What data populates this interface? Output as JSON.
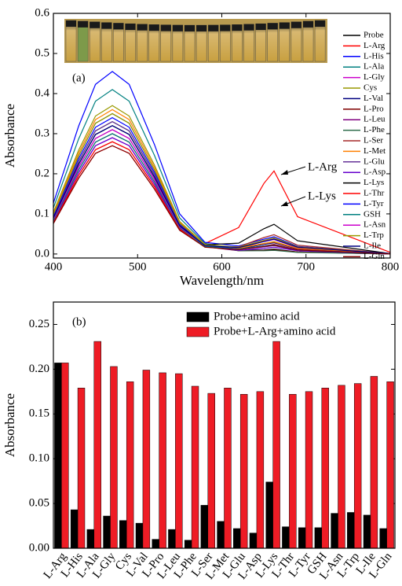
{
  "chart_data": [
    {
      "type": "line",
      "x_label": "Wavelength/nm",
      "y_label": "Absorbance",
      "annotations": [
        "(a)",
        "L-Arg",
        "L-Lys"
      ],
      "xlim": [
        400,
        800
      ],
      "xticks": [
        400,
        500,
        600,
        700,
        800
      ],
      "ylim": [
        -0.01,
        0.6
      ],
      "yticks": [
        {
          "value": 0,
          "label": "0.0"
        },
        0.1,
        0.2,
        0.3,
        0.4,
        0.5,
        0.6
      ],
      "legend": "upper right",
      "x": [
        400,
        430,
        450,
        470,
        490,
        520,
        550,
        580,
        620,
        650,
        662,
        690,
        800
      ],
      "series": [
        {
          "name": "Probe",
          "color": "#000000",
          "values": [
            0.092,
            0.231,
            0.307,
            0.33,
            0.307,
            0.198,
            0.073,
            0.021,
            0.009,
            0.01,
            0.012,
            0.005,
            0.0
          ]
        },
        {
          "name": "L-Arg",
          "color": "#ff0000",
          "values": [
            0.076,
            0.189,
            0.251,
            0.27,
            0.251,
            0.162,
            0.059,
            0.026,
            0.066,
            0.176,
            0.207,
            0.093,
            0.004
          ]
        },
        {
          "name": "L-His",
          "color": "#0000ff",
          "values": [
            0.127,
            0.319,
            0.423,
            0.455,
            0.423,
            0.273,
            0.1,
            0.029,
            0.02,
            0.037,
            0.043,
            0.019,
            0.001
          ]
        },
        {
          "name": "L-Ala",
          "color": "#008080",
          "values": [
            0.115,
            0.287,
            0.381,
            0.41,
            0.381,
            0.246,
            0.09,
            0.026,
            0.012,
            0.018,
            0.021,
            0.009,
            0.0
          ]
        },
        {
          "name": "L-Gly",
          "color": "#cc00cc",
          "values": [
            0.081,
            0.203,
            0.27,
            0.29,
            0.27,
            0.174,
            0.064,
            0.019,
            0.015,
            0.031,
            0.036,
            0.016,
            0.001
          ]
        },
        {
          "name": "Cys",
          "color": "#999900",
          "values": [
            0.104,
            0.259,
            0.344,
            0.37,
            0.344,
            0.222,
            0.081,
            0.024,
            0.015,
            0.026,
            0.031,
            0.014,
            0.001
          ]
        },
        {
          "name": "L-Val",
          "color": "#000080",
          "values": [
            0.09,
            0.224,
            0.298,
            0.32,
            0.298,
            0.192,
            0.07,
            0.02,
            0.013,
            0.024,
            0.028,
            0.013,
            0.001
          ]
        },
        {
          "name": "L-Pro",
          "color": "#800000",
          "values": [
            0.084,
            0.21,
            0.279,
            0.3,
            0.279,
            0.18,
            0.066,
            0.018,
            0.008,
            0.009,
            0.01,
            0.005,
            0.0
          ]
        },
        {
          "name": "L-Leu",
          "color": "#800080",
          "values": [
            0.087,
            0.217,
            0.288,
            0.31,
            0.288,
            0.186,
            0.068,
            0.02,
            0.011,
            0.018,
            0.021,
            0.009,
            0.0
          ]
        },
        {
          "name": "L-Phe",
          "color": "#2e6b4a",
          "values": [
            0.098,
            0.245,
            0.326,
            0.35,
            0.326,
            0.21,
            0.077,
            0.021,
            0.008,
            0.008,
            0.009,
            0.004,
            0.0
          ]
        },
        {
          "name": "L-Ser",
          "color": "#a52a2a",
          "values": [
            0.078,
            0.196,
            0.26,
            0.28,
            0.26,
            0.168,
            0.062,
            0.019,
            0.018,
            0.041,
            0.048,
            0.022,
            0.001
          ]
        },
        {
          "name": "L-Met",
          "color": "#ff8000",
          "values": [
            0.101,
            0.252,
            0.335,
            0.36,
            0.335,
            0.216,
            0.079,
            0.024,
            0.014,
            0.026,
            0.03,
            0.014,
            0.001
          ]
        },
        {
          "name": "L-Glu",
          "color": "#663399",
          "values": [
            0.092,
            0.231,
            0.307,
            0.33,
            0.307,
            0.198,
            0.073,
            0.021,
            0.012,
            0.019,
            0.022,
            0.01,
            0.0
          ]
        },
        {
          "name": "L-Asp",
          "color": "#6600cc",
          "values": [
            0.081,
            0.203,
            0.27,
            0.29,
            0.27,
            0.174,
            0.064,
            0.018,
            0.009,
            0.014,
            0.017,
            0.008,
            0.0
          ]
        },
        {
          "name": "L-Lys",
          "color": "#000000",
          "values": [
            0.09,
            0.224,
            0.298,
            0.32,
            0.298,
            0.192,
            0.07,
            0.023,
            0.027,
            0.063,
            0.074,
            0.033,
            0.001
          ]
        },
        {
          "name": "L-Thr",
          "color": "#ff0000",
          "values": [
            0.078,
            0.196,
            0.26,
            0.28,
            0.26,
            0.168,
            0.062,
            0.018,
            0.011,
            0.02,
            0.024,
            0.011,
            0.0
          ]
        },
        {
          "name": "L-Tyr",
          "color": "#0000ff",
          "values": [
            0.095,
            0.238,
            0.316,
            0.34,
            0.316,
            0.204,
            0.075,
            0.021,
            0.012,
            0.02,
            0.023,
            0.01,
            0.0
          ]
        },
        {
          "name": "GSH",
          "color": "#008080",
          "values": [
            0.084,
            0.21,
            0.279,
            0.3,
            0.279,
            0.18,
            0.066,
            0.019,
            0.012,
            0.02,
            0.023,
            0.01,
            0.0
          ]
        },
        {
          "name": "L-Asn",
          "color": "#cc00cc",
          "values": [
            0.087,
            0.217,
            0.288,
            0.31,
            0.288,
            0.186,
            0.068,
            0.021,
            0.017,
            0.033,
            0.039,
            0.018,
            0.001
          ]
        },
        {
          "name": "L-Trp",
          "color": "#999900",
          "values": [
            0.098,
            0.245,
            0.326,
            0.35,
            0.326,
            0.21,
            0.077,
            0.023,
            0.017,
            0.034,
            0.04,
            0.018,
            0.001
          ]
        },
        {
          "name": "L-Ile",
          "color": "#000080",
          "values": [
            0.09,
            0.224,
            0.298,
            0.32,
            0.298,
            0.192,
            0.07,
            0.021,
            0.016,
            0.031,
            0.037,
            0.017,
            0.001
          ]
        },
        {
          "name": "L-Gln",
          "color": "#800000",
          "values": [
            0.076,
            0.189,
            0.251,
            0.27,
            0.251,
            0.162,
            0.059,
            0.017,
            0.011,
            0.019,
            0.022,
            0.01,
            0.0
          ]
        }
      ]
    },
    {
      "type": "bar",
      "y_label": "Absorbance",
      "annotations": [
        "(b)"
      ],
      "ylim": [
        0,
        0.275
      ],
      "yticks": [
        {
          "value": 0,
          "label": "0.00"
        },
        0.05,
        {
          "value": 0.1,
          "label": "0.10"
        },
        0.15,
        {
          "value": 0.2,
          "label": "0.20"
        },
        0.25
      ],
      "legend": "upper center",
      "categories": [
        "L-Arg",
        "L-His",
        "L-Ala",
        "L-Gly",
        "Cys",
        "L-Val",
        "L-Pro",
        "L-Leu",
        "L-Phe",
        "L-Ser",
        "L-Met",
        "L-Glu",
        "L-Asp",
        "L-Lys",
        "L-Thr",
        "L-Tyr",
        "GSH",
        "L-Asn",
        "L-Trp",
        "L-Ile",
        "L-Gln"
      ],
      "series": [
        {
          "name": "Probe+amino acid",
          "color": "#000000",
          "values": [
            0.207,
            0.043,
            0.021,
            0.036,
            0.031,
            0.028,
            0.01,
            0.021,
            0.009,
            0.048,
            0.03,
            0.022,
            0.017,
            0.074,
            0.024,
            0.023,
            0.023,
            0.039,
            0.04,
            0.037,
            0.022
          ]
        },
        {
          "name": "Probe+L-Arg+amino acid",
          "color": "#ee1c25",
          "values": [
            0.207,
            0.179,
            0.231,
            0.203,
            0.186,
            0.199,
            0.196,
            0.195,
            0.181,
            0.173,
            0.179,
            0.172,
            0.175,
            0.231,
            0.172,
            0.175,
            0.179,
            0.182,
            0.184,
            0.192,
            0.186
          ]
        }
      ]
    }
  ]
}
